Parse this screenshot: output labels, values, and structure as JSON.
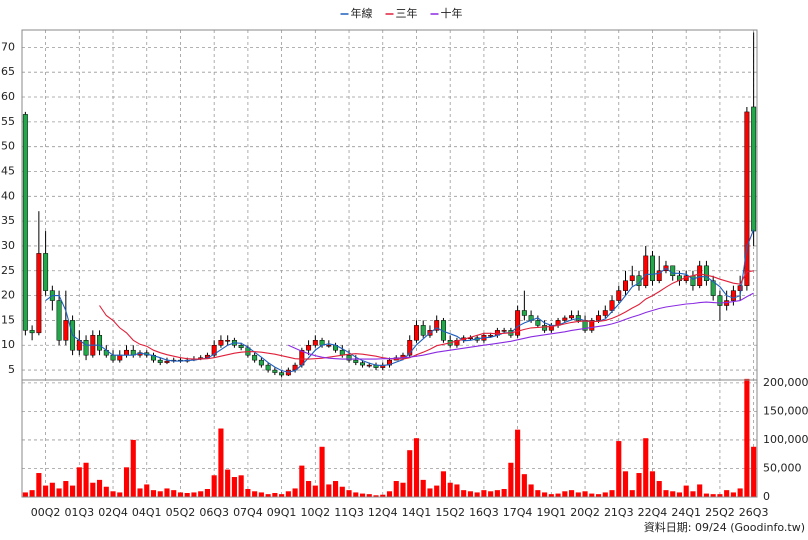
{
  "chart_data": {
    "type": "candlestick",
    "legend": "top",
    "grid": true,
    "up_color": "#ff0000",
    "down_color": "#22a84a",
    "footer": "資料日期: 09/24 (Goodinfo.tw)",
    "categories": [
      null,
      null,
      null,
      "00Q2",
      null,
      null,
      null,
      null,
      "01Q3",
      null,
      null,
      null,
      null,
      "02Q4",
      null,
      null,
      null,
      null,
      "04Q1",
      null,
      null,
      null,
      null,
      "05Q2",
      null,
      null,
      null,
      null,
      "06Q3",
      null,
      null,
      null,
      null,
      "07Q4",
      null,
      null,
      null,
      null,
      "09Q1",
      null,
      null,
      null,
      null,
      "10Q2",
      null,
      null,
      null,
      null,
      "11Q3",
      null,
      null,
      null,
      null,
      "12Q4",
      null,
      null,
      null,
      null,
      "14Q1",
      null,
      null,
      null,
      null,
      "15Q2",
      null,
      null,
      null,
      null,
      "16Q3",
      null,
      null,
      null,
      null,
      "17Q4",
      null,
      null,
      null,
      null,
      "19Q1",
      null,
      null,
      null,
      null,
      "20Q2",
      null,
      null,
      null,
      null,
      "21Q3",
      null,
      null,
      null,
      null,
      "22Q4",
      null,
      null,
      null,
      null,
      "24Q1",
      null,
      null,
      null,
      null,
      "25Q2",
      null,
      null,
      null,
      null,
      "26Q3"
    ],
    "open": [
      56.5,
      13,
      12.5,
      28.5,
      21,
      19,
      11,
      15,
      9,
      11,
      8,
      12,
      9,
      8,
      7,
      8,
      9,
      8,
      8.5,
      8,
      7,
      6.5,
      6.8,
      7,
      6.8,
      7,
      7.2,
      7.5,
      8,
      10,
      11,
      11,
      10,
      9.5,
      8,
      7,
      6,
      5,
      4.5,
      4,
      5,
      6,
      9,
      10,
      11,
      10,
      10,
      9,
      8,
      7,
      6.5,
      6,
      6,
      5.5,
      6,
      7,
      7.5,
      8,
      11,
      14,
      12,
      13,
      15,
      11,
      10,
      11,
      11.5,
      11.5,
      11,
      12,
      12,
      13,
      13,
      12,
      17,
      16,
      15,
      14,
      13,
      14,
      15,
      15.5,
      16,
      15,
      13,
      15,
      16,
      17,
      19,
      21,
      23,
      24,
      22,
      28,
      23,
      25,
      26,
      24,
      23,
      24,
      22,
      26,
      23,
      20,
      18,
      19,
      21,
      22,
      58
    ],
    "high": [
      57,
      14,
      37,
      33,
      22,
      21,
      21,
      16,
      13,
      12,
      13,
      13,
      10,
      9,
      9,
      10,
      10,
      9,
      9,
      8.5,
      7.5,
      7.5,
      7.5,
      7.5,
      7.5,
      7.8,
      8,
      8.5,
      11,
      12,
      12,
      11.5,
      10.5,
      10,
      8.5,
      7.5,
      6.5,
      5.5,
      5,
      5.5,
      6.5,
      9.5,
      11,
      12,
      11.5,
      11,
      10.5,
      10,
      9,
      8,
      7,
      6.5,
      6.5,
      6.5,
      7.5,
      8,
      8.5,
      12,
      15,
      15,
      14,
      16,
      15.5,
      12,
      11.5,
      12,
      12,
      12,
      12.5,
      12.5,
      13.5,
      13.5,
      13.5,
      18,
      21,
      17,
      16,
      15,
      14.5,
      15.5,
      16,
      17,
      17,
      16,
      15.5,
      17,
      18,
      20,
      22,
      25,
      26,
      25,
      30,
      29,
      28,
      27,
      26,
      25,
      25,
      25,
      27,
      27,
      24,
      21,
      21,
      22,
      24,
      58,
      73
    ],
    "low": [
      12,
      11,
      12,
      20,
      17,
      10,
      10,
      8,
      8,
      7,
      7.5,
      8,
      7.5,
      6.5,
      6.5,
      7.5,
      7.5,
      7.5,
      7.5,
      6.5,
      6,
      6.2,
      6.5,
      6.5,
      6.5,
      6.8,
      7,
      7.5,
      7.5,
      9.5,
      10,
      9.5,
      9,
      7.5,
      6.5,
      5.5,
      4.5,
      4,
      3.5,
      3.8,
      4.5,
      5.5,
      8,
      9.5,
      9.5,
      9.5,
      8.5,
      7.5,
      6.5,
      6,
      5.5,
      5.5,
      5,
      5,
      5.5,
      7,
      7,
      7.5,
      10.5,
      11.5,
      11.5,
      12.5,
      10.5,
      9.5,
      9.5,
      10.5,
      11,
      10.5,
      10.5,
      11.5,
      11.5,
      12.5,
      11.5,
      11.5,
      15,
      14.5,
      13.5,
      12.5,
      12.5,
      13.5,
      14.5,
      15,
      14.5,
      12.5,
      12.5,
      14.5,
      15.5,
      16.5,
      18.5,
      20,
      22,
      21,
      21.5,
      22,
      22.5,
      24.5,
      23,
      22,
      22.5,
      21,
      21.5,
      22,
      19,
      15,
      17,
      18,
      19,
      21,
      30
    ],
    "close": [
      13,
      12.5,
      28.5,
      21,
      19,
      11,
      15,
      9,
      11,
      8,
      12,
      9,
      8,
      7,
      8,
      9,
      8,
      8.5,
      8,
      7,
      6.5,
      6.8,
      7,
      6.8,
      7,
      7.2,
      7.5,
      8,
      10,
      11,
      11,
      10,
      9.5,
      8,
      7,
      6,
      5,
      4.5,
      4,
      5,
      6,
      9,
      10,
      11,
      10,
      10,
      9,
      8,
      7,
      6.5,
      6,
      6,
      5.5,
      6,
      7,
      7.5,
      8,
      11,
      14,
      12,
      13,
      15,
      11,
      10,
      11,
      11.5,
      11.5,
      11,
      12,
      12,
      13,
      13,
      12,
      17,
      16,
      15,
      14,
      13,
      14,
      15,
      15.5,
      16,
      15,
      13,
      15,
      16,
      17,
      19,
      21,
      23,
      24,
      22,
      28,
      23,
      25,
      26,
      24,
      23,
      24,
      22,
      26,
      23,
      20,
      18,
      19,
      21,
      22,
      57,
      33
    ],
    "series": [
      {
        "name": "年線",
        "color": "#1f5fbf",
        "values": [
          null,
          null,
          null,
          19,
          20,
          20,
          17,
          12,
          11,
          10,
          10,
          10,
          9,
          8,
          8,
          8,
          8,
          8.4,
          8.2,
          7.9,
          7.5,
          7,
          6.8,
          6.8,
          6.9,
          7,
          7.2,
          7.4,
          8.2,
          9.1,
          10,
          10.5,
          10.4,
          9.6,
          8.6,
          7.6,
          6.5,
          5.6,
          4.9,
          4.6,
          4.9,
          6,
          7.5,
          9,
          10,
          10.3,
          10,
          9.3,
          8.5,
          7.6,
          6.9,
          6.4,
          6,
          5.9,
          6.1,
          6.6,
          7.1,
          8.4,
          10.1,
          11.3,
          12.5,
          13.5,
          12.8,
          12.3,
          11.8,
          10.9,
          11,
          11.3,
          11.5,
          11.6,
          12,
          12.5,
          12.5,
          13.8,
          14.5,
          15,
          15.5,
          14.5,
          14,
          14,
          14.6,
          15.1,
          15.4,
          14.9,
          14.8,
          14.8,
          15.3,
          16.8,
          18.3,
          20,
          21.8,
          22.5,
          24.3,
          24.3,
          24.5,
          25.5,
          24.5,
          24.5,
          24.3,
          23.3,
          23.8,
          23.8,
          22.8,
          21.8,
          20,
          19.5,
          20,
          29.8,
          33.3
        ]
      },
      {
        "name": "三年",
        "color": "#e0203a",
        "values": [
          null,
          null,
          null,
          null,
          null,
          null,
          null,
          null,
          null,
          null,
          null,
          18,
          16,
          15,
          13.5,
          12.5,
          11,
          10.2,
          9.8,
          9,
          8.5,
          8.1,
          7.8,
          7.5,
          7.3,
          7.2,
          7.2,
          7.3,
          7.5,
          7.8,
          8.1,
          8.4,
          8.6,
          8.7,
          8.7,
          8.6,
          8.4,
          8.2,
          7.9,
          7.6,
          7.3,
          7.2,
          7.2,
          7.3,
          7.4,
          7.6,
          7.8,
          8,
          8.2,
          8.3,
          8.2,
          8,
          7.8,
          7.5,
          7.3,
          7.2,
          7.2,
          7.5,
          8.1,
          8.6,
          9.2,
          9.9,
          10.2,
          10.5,
          10.9,
          11.2,
          11.6,
          12,
          12.4,
          12.4,
          12.3,
          12.4,
          12.5,
          12.8,
          13.2,
          13.5,
          13.6,
          13.7,
          13.8,
          14,
          14.3,
          14.6,
          14.8,
          14.9,
          14.8,
          14.8,
          15,
          15.4,
          16,
          16.7,
          17.5,
          18.2,
          19.3,
          20,
          20.8,
          21.7,
          22.5,
          23.1,
          23.7,
          24,
          24.4,
          24.1,
          23.8,
          23.3,
          22.9,
          22.5,
          22.3,
          24.8,
          25
        ]
      },
      {
        "name": "十年",
        "color": "#8a2be2",
        "values": [
          null,
          null,
          null,
          null,
          null,
          null,
          null,
          null,
          null,
          null,
          null,
          null,
          null,
          null,
          null,
          null,
          null,
          null,
          null,
          null,
          null,
          null,
          null,
          null,
          null,
          null,
          null,
          null,
          null,
          null,
          null,
          null,
          null,
          null,
          null,
          null,
          null,
          null,
          null,
          10,
          9.4,
          8.8,
          8.3,
          7.9,
          7.6,
          7.4,
          7.3,
          7.2,
          7.2,
          7.2,
          7.2,
          7.2,
          7.2,
          7.3,
          7.3,
          7.4,
          7.5,
          7.6,
          7.8,
          8,
          8.3,
          8.6,
          8.8,
          9,
          9.2,
          9.4,
          9.6,
          9.8,
          10,
          10.2,
          10.4,
          10.6,
          10.8,
          11.1,
          11.4,
          11.7,
          11.9,
          12.1,
          12.3,
          12.5,
          12.7,
          13,
          13.2,
          13.4,
          13.6,
          13.8,
          14,
          14.3,
          14.7,
          15.2,
          15.7,
          16.1,
          16.6,
          17,
          17.4,
          17.7,
          17.9,
          18.1,
          18.3,
          18.4,
          18.6,
          18.7,
          18.6,
          18.5,
          18.6,
          18.8,
          19,
          19.8,
          20.5
        ]
      }
    ],
    "ylim": [
      3,
      73.5
    ],
    "yticks": [
      5,
      10,
      15,
      20,
      25,
      30,
      35,
      40,
      45,
      50,
      55,
      60,
      65,
      70
    ],
    "volume": {
      "color": "#ff0000",
      "values": [
        8000,
        12000,
        42000,
        20000,
        25000,
        15000,
        28000,
        20000,
        52000,
        60000,
        25000,
        30000,
        18000,
        10000,
        8000,
        52000,
        100000,
        15000,
        22000,
        12000,
        10000,
        15000,
        12000,
        8000,
        7000,
        8000,
        10000,
        14000,
        38000,
        120000,
        48000,
        35000,
        38000,
        14000,
        10000,
        8000,
        5000,
        7000,
        5000,
        10000,
        15000,
        55000,
        28000,
        20000,
        88000,
        22000,
        28000,
        18000,
        12000,
        8000,
        6000,
        5000,
        3000,
        4000,
        10000,
        28000,
        25000,
        82000,
        103000,
        30000,
        15000,
        20000,
        45000,
        25000,
        22000,
        12000,
        10000,
        8000,
        12000,
        10000,
        12000,
        14000,
        60000,
        118000,
        40000,
        22000,
        12000,
        8000,
        5000,
        6000,
        10000,
        12000,
        8000,
        10000,
        6000,
        5000,
        8000,
        12000,
        98000,
        45000,
        12000,
        42000,
        103000,
        45000,
        28000,
        12000,
        10000,
        8000,
        20000,
        10000,
        22000,
        6000,
        5000,
        5000,
        12000,
        8000,
        15000,
        207000,
        88000
      ],
      "ylim": [
        0,
        205000
      ],
      "yticks": [
        0,
        {
          "value": 50000,
          "label": "50,000"
        },
        {
          "value": 100000,
          "label": "100,000"
        },
        {
          "value": 150000,
          "label": "150,000"
        },
        {
          "value": 200000,
          "label": "200,000"
        }
      ]
    }
  }
}
